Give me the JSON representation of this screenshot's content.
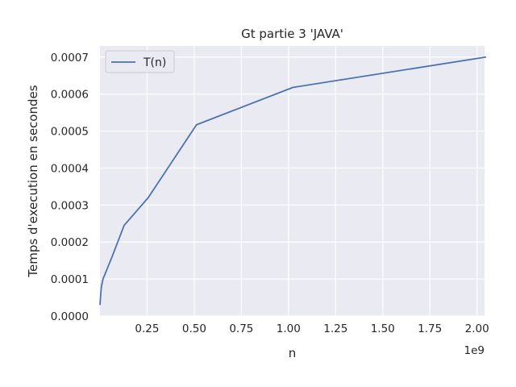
{
  "chart_data": {
    "type": "line",
    "title": "Gt partie 3 'JAVA'",
    "xlabel": "n",
    "ylabel": "Temps d'execution en secondes",
    "x_offset_label": "1e9",
    "xlim": [
      1,
      2040000000
    ],
    "ylim": [
      0,
      0.00073
    ],
    "x_ticks": [
      250000000,
      500000000,
      750000000,
      1000000000,
      1250000000,
      1500000000,
      1750000000,
      2000000000
    ],
    "x_tick_labels": [
      "0.25",
      "0.50",
      "0.75",
      "1.00",
      "1.25",
      "1.50",
      "1.75",
      "2.00"
    ],
    "y_ticks": [
      0,
      0.0001,
      0.0002,
      0.0003,
      0.0004,
      0.0005,
      0.0006,
      0.0007
    ],
    "y_tick_labels": [
      "0.0000",
      "0.0001",
      "0.0002",
      "0.0003",
      "0.0004",
      "0.0005",
      "0.0006",
      "0.0007"
    ],
    "grid": true,
    "legend_position": "top-left",
    "series": [
      {
        "name": "T(n)",
        "color": "#4c72b0",
        "x": [
          1,
          4000000,
          8000000,
          16000000,
          32000000,
          64000000,
          128000000,
          256000000,
          512000000,
          1024000000,
          2048000000
        ],
        "y": [
          3e-05,
          6e-05,
          8e-05,
          0.0001,
          0.00012,
          0.00016,
          0.000245,
          0.00032,
          0.000517,
          0.000618,
          0.0007
        ]
      }
    ]
  }
}
